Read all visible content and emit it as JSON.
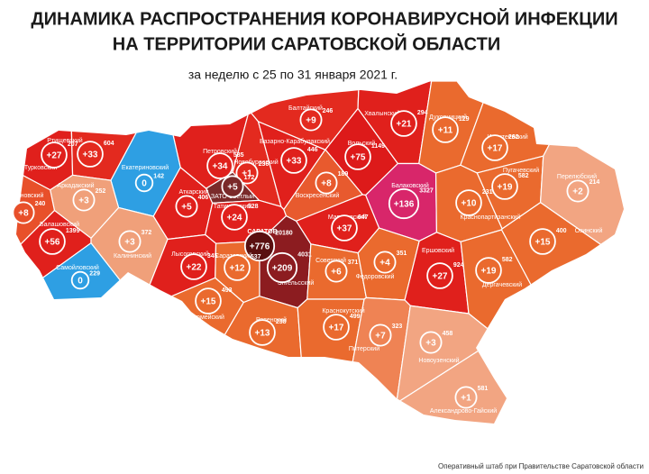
{
  "header": {
    "title": [
      "ДИНАМИКА РАСПРОСТРАНЕНИЯ КОРОНАВИРУСНОЙ ИНФЕКЦИИ",
      "НА ТЕРРИТОРИИ САРАТОВСКОЙ ОБЛАСТИ"
    ],
    "subtitle": "за неделю с 25 по 31 января 2021 г."
  },
  "districts": [
    {
      "name": "Турковский",
      "increase": "+27",
      "total": 207,
      "color": "#e0201c"
    },
    {
      "name": "Ртищевский",
      "increase": "+33",
      "total": 604,
      "color": "#e32a1f"
    },
    {
      "name": "Екатериновский",
      "increase": "0",
      "total": 142,
      "color": "#2e9fe3"
    },
    {
      "name": "Аркадакский",
      "increase": "+3",
      "total": 252,
      "color": "#f0a07a"
    },
    {
      "name": "Романовский",
      "increase": "+8",
      "total": 240,
      "color": "#e8502a"
    },
    {
      "name": "Балашовский",
      "increase": "+56",
      "total": 1399,
      "color": "#e0201c"
    },
    {
      "name": "Самойловский",
      "increase": "0",
      "total": 229,
      "color": "#2e9fe3"
    },
    {
      "name": "Калининский",
      "increase": "+3",
      "total": 372,
      "color": "#f0a07a"
    },
    {
      "name": "Аткарский",
      "increase": "+5",
      "total": 406,
      "color": "#e0201c"
    },
    {
      "name": "Петровский",
      "increase": "+34",
      "total": 585,
      "color": "#e0201c"
    },
    {
      "name": "Новобурасский",
      "increase": "+1",
      "total": 236,
      "color": "#e32a1f"
    },
    {
      "name": "ЗАТО Светлый",
      "increase": "+5",
      "total": 172,
      "color": "#7a2a2a"
    },
    {
      "name": "Татищевский",
      "increase": "+24",
      "total": 528,
      "color": "#e0201c"
    },
    {
      "name": "Базарно-Карабулакский",
      "increase": "+33",
      "total": 446,
      "color": "#e0201c"
    },
    {
      "name": "Балтайский",
      "increase": "+9",
      "total": 246,
      "color": "#e32a1f"
    },
    {
      "name": "Вольский",
      "increase": "+75",
      "total": 1149,
      "color": "#dd1a1a"
    },
    {
      "name": "Хвалынский",
      "increase": "+21",
      "total": 294,
      "color": "#e0201c"
    },
    {
      "name": "Духовницкий",
      "increase": "+11",
      "total": 129,
      "color": "#ea6a2e"
    },
    {
      "name": "Ивантеевский",
      "increase": "+17",
      "total": 262,
      "color": "#ea6a2e"
    },
    {
      "name": "Воскресенский",
      "increase": "+8",
      "total": 189,
      "color": "#e85a2e"
    },
    {
      "name": "Балаковский",
      "increase": "+136",
      "total": 3327,
      "color": "#d8266a"
    },
    {
      "name": "Пугачевский",
      "increase": "+19",
      "total": 582,
      "color": "#ea6a2e"
    },
    {
      "name": "Перелюбский",
      "increase": "+2",
      "total": 214,
      "color": "#f2a582"
    },
    {
      "name": "Краснопартизанский",
      "increase": "+10",
      "total": 231,
      "color": "#ea6a2e"
    },
    {
      "name": "Марксовский",
      "increase": "+37",
      "total": 647,
      "color": "#e0201c"
    },
    {
      "name": "САРАТОВ",
      "increase": "+776",
      "total": 20180,
      "color": "#5a1010"
    },
    {
      "name": "Лысогорский",
      "increase": "+22",
      "total": 345,
      "color": "#e0201c"
    },
    {
      "name": "Саратовский",
      "increase": "+12",
      "total": 537,
      "color": "#ea6a2e"
    },
    {
      "name": "Энгельсский",
      "increase": "+209",
      "total": 4031,
      "color": "#8c1c20"
    },
    {
      "name": "Советский",
      "increase": "+6",
      "total": 371,
      "color": "#ea6a2e"
    },
    {
      "name": "Федоровский",
      "increase": "+4",
      "total": 351,
      "color": "#ea6a2e"
    },
    {
      "name": "Ершовский",
      "increase": "+27",
      "total": 924,
      "color": "#e0201c"
    },
    {
      "name": "Дергачевский",
      "increase": "+19",
      "total": 582,
      "color": "#ea6a2e"
    },
    {
      "name": "Озинский",
      "increase": "+15",
      "total": 400,
      "color": "#ea6a2e"
    },
    {
      "name": "Красноармейский",
      "increase": "+15",
      "total": 493,
      "color": "#ea6a2e"
    },
    {
      "name": "Ровенский",
      "increase": "+13",
      "total": 238,
      "color": "#ea6a2e"
    },
    {
      "name": "Краснокутский",
      "increase": "+17",
      "total": 499,
      "color": "#ea6a2e"
    },
    {
      "name": "Питерский",
      "increase": "+7",
      "total": 323,
      "color": "#ef8354"
    },
    {
      "name": "Новоузенский",
      "increase": "+3",
      "total": 458,
      "color": "#f2a582"
    },
    {
      "name": "Александрово-Гайский",
      "increase": "+1",
      "total": 581,
      "color": "#f2a582"
    }
  ],
  "footer": "Оперативный штаб при Правительстве Саратовской области"
}
